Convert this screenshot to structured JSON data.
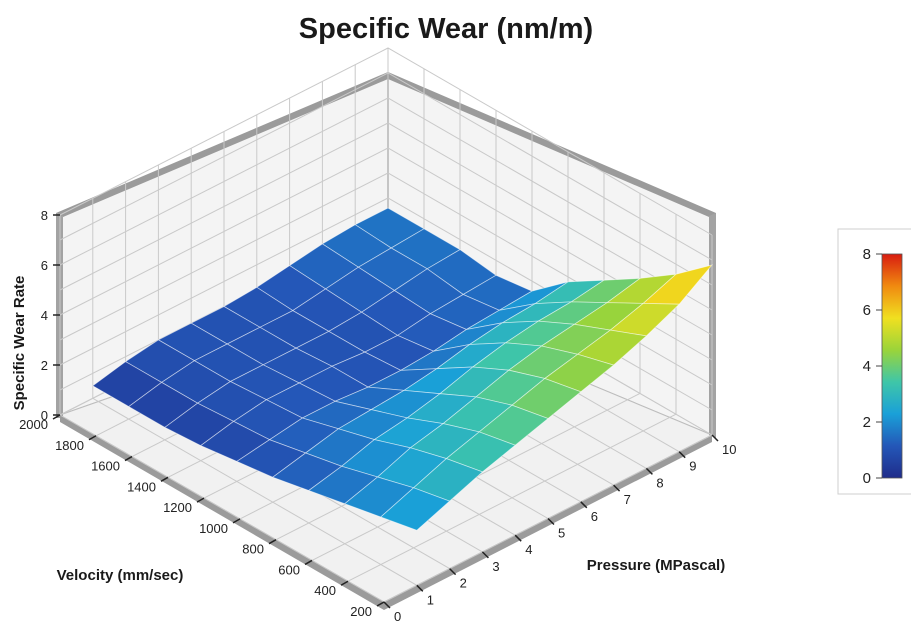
{
  "chart_data": {
    "type": "surface3d",
    "title": "Specific Wear (nm/m)",
    "xlabel": "Velocity (mm/sec)",
    "ylabel": "Pressure (MPascal)",
    "zlabel": "Specific Wear Rate",
    "velocity_ticks": [
      "2000",
      "1800",
      "1600",
      "1400",
      "1200",
      "1000",
      "800",
      "600",
      "400",
      "200"
    ],
    "pressure_ticks": [
      "0",
      "1",
      "2",
      "3",
      "4",
      "5",
      "6",
      "7",
      "8",
      "9",
      "10"
    ],
    "z_ticks": [
      "0",
      "2",
      "4",
      "6",
      "8"
    ],
    "velocity_range": [
      200,
      2000
    ],
    "pressure_range": [
      0,
      10
    ],
    "z_range": [
      0,
      8
    ],
    "grid": true,
    "colorbar": {
      "ticks": [
        "0",
        "2",
        "4",
        "6",
        "8"
      ],
      "range": [
        0,
        8
      ],
      "colors": [
        "#1f2c8a",
        "#2457b8",
        "#1aa0d8",
        "#3fc6a8",
        "#9ad43a",
        "#f0e020",
        "#f08a10",
        "#d81c10"
      ]
    },
    "surface": {
      "velocity": [
        2000,
        1800,
        1600,
        1400,
        1200,
        1000,
        800,
        600,
        400,
        200
      ],
      "pressure": [
        1,
        2,
        3,
        4,
        5,
        6,
        7,
        8,
        9,
        10
      ],
      "values": [
        [
          0.5,
          0.8,
          1.0,
          1.0,
          1.0,
          1.1,
          1.3,
          1.5,
          1.6,
          1.6
        ],
        [
          0.5,
          0.8,
          1.0,
          1.0,
          1.0,
          1.0,
          1.2,
          1.4,
          1.5,
          1.6
        ],
        [
          0.5,
          0.8,
          1.0,
          1.0,
          1.0,
          1.0,
          1.1,
          1.3,
          1.5,
          1.6
        ],
        [
          0.6,
          0.9,
          1.1,
          1.1,
          1.1,
          1.0,
          1.0,
          1.2,
          1.3,
          1.4
        ],
        [
          0.8,
          1.0,
          1.2,
          1.2,
          1.1,
          1.1,
          1.2,
          1.4,
          1.5,
          1.6
        ],
        [
          1.0,
          1.3,
          1.6,
          1.7,
          1.8,
          2.0,
          2.3,
          2.5,
          2.6,
          2.8
        ],
        [
          1.3,
          1.6,
          2.0,
          2.2,
          2.5,
          2.9,
          3.2,
          3.4,
          3.5,
          3.7
        ],
        [
          1.6,
          2.0,
          2.5,
          2.8,
          3.2,
          3.6,
          3.9,
          4.1,
          4.3,
          4.6
        ],
        [
          1.9,
          2.4,
          2.9,
          3.3,
          3.7,
          4.1,
          4.4,
          4.7,
          5.1,
          5.6
        ],
        [
          2.2,
          2.7,
          3.2,
          3.6,
          4.0,
          4.4,
          4.8,
          5.3,
          5.9,
          6.8
        ]
      ]
    }
  }
}
